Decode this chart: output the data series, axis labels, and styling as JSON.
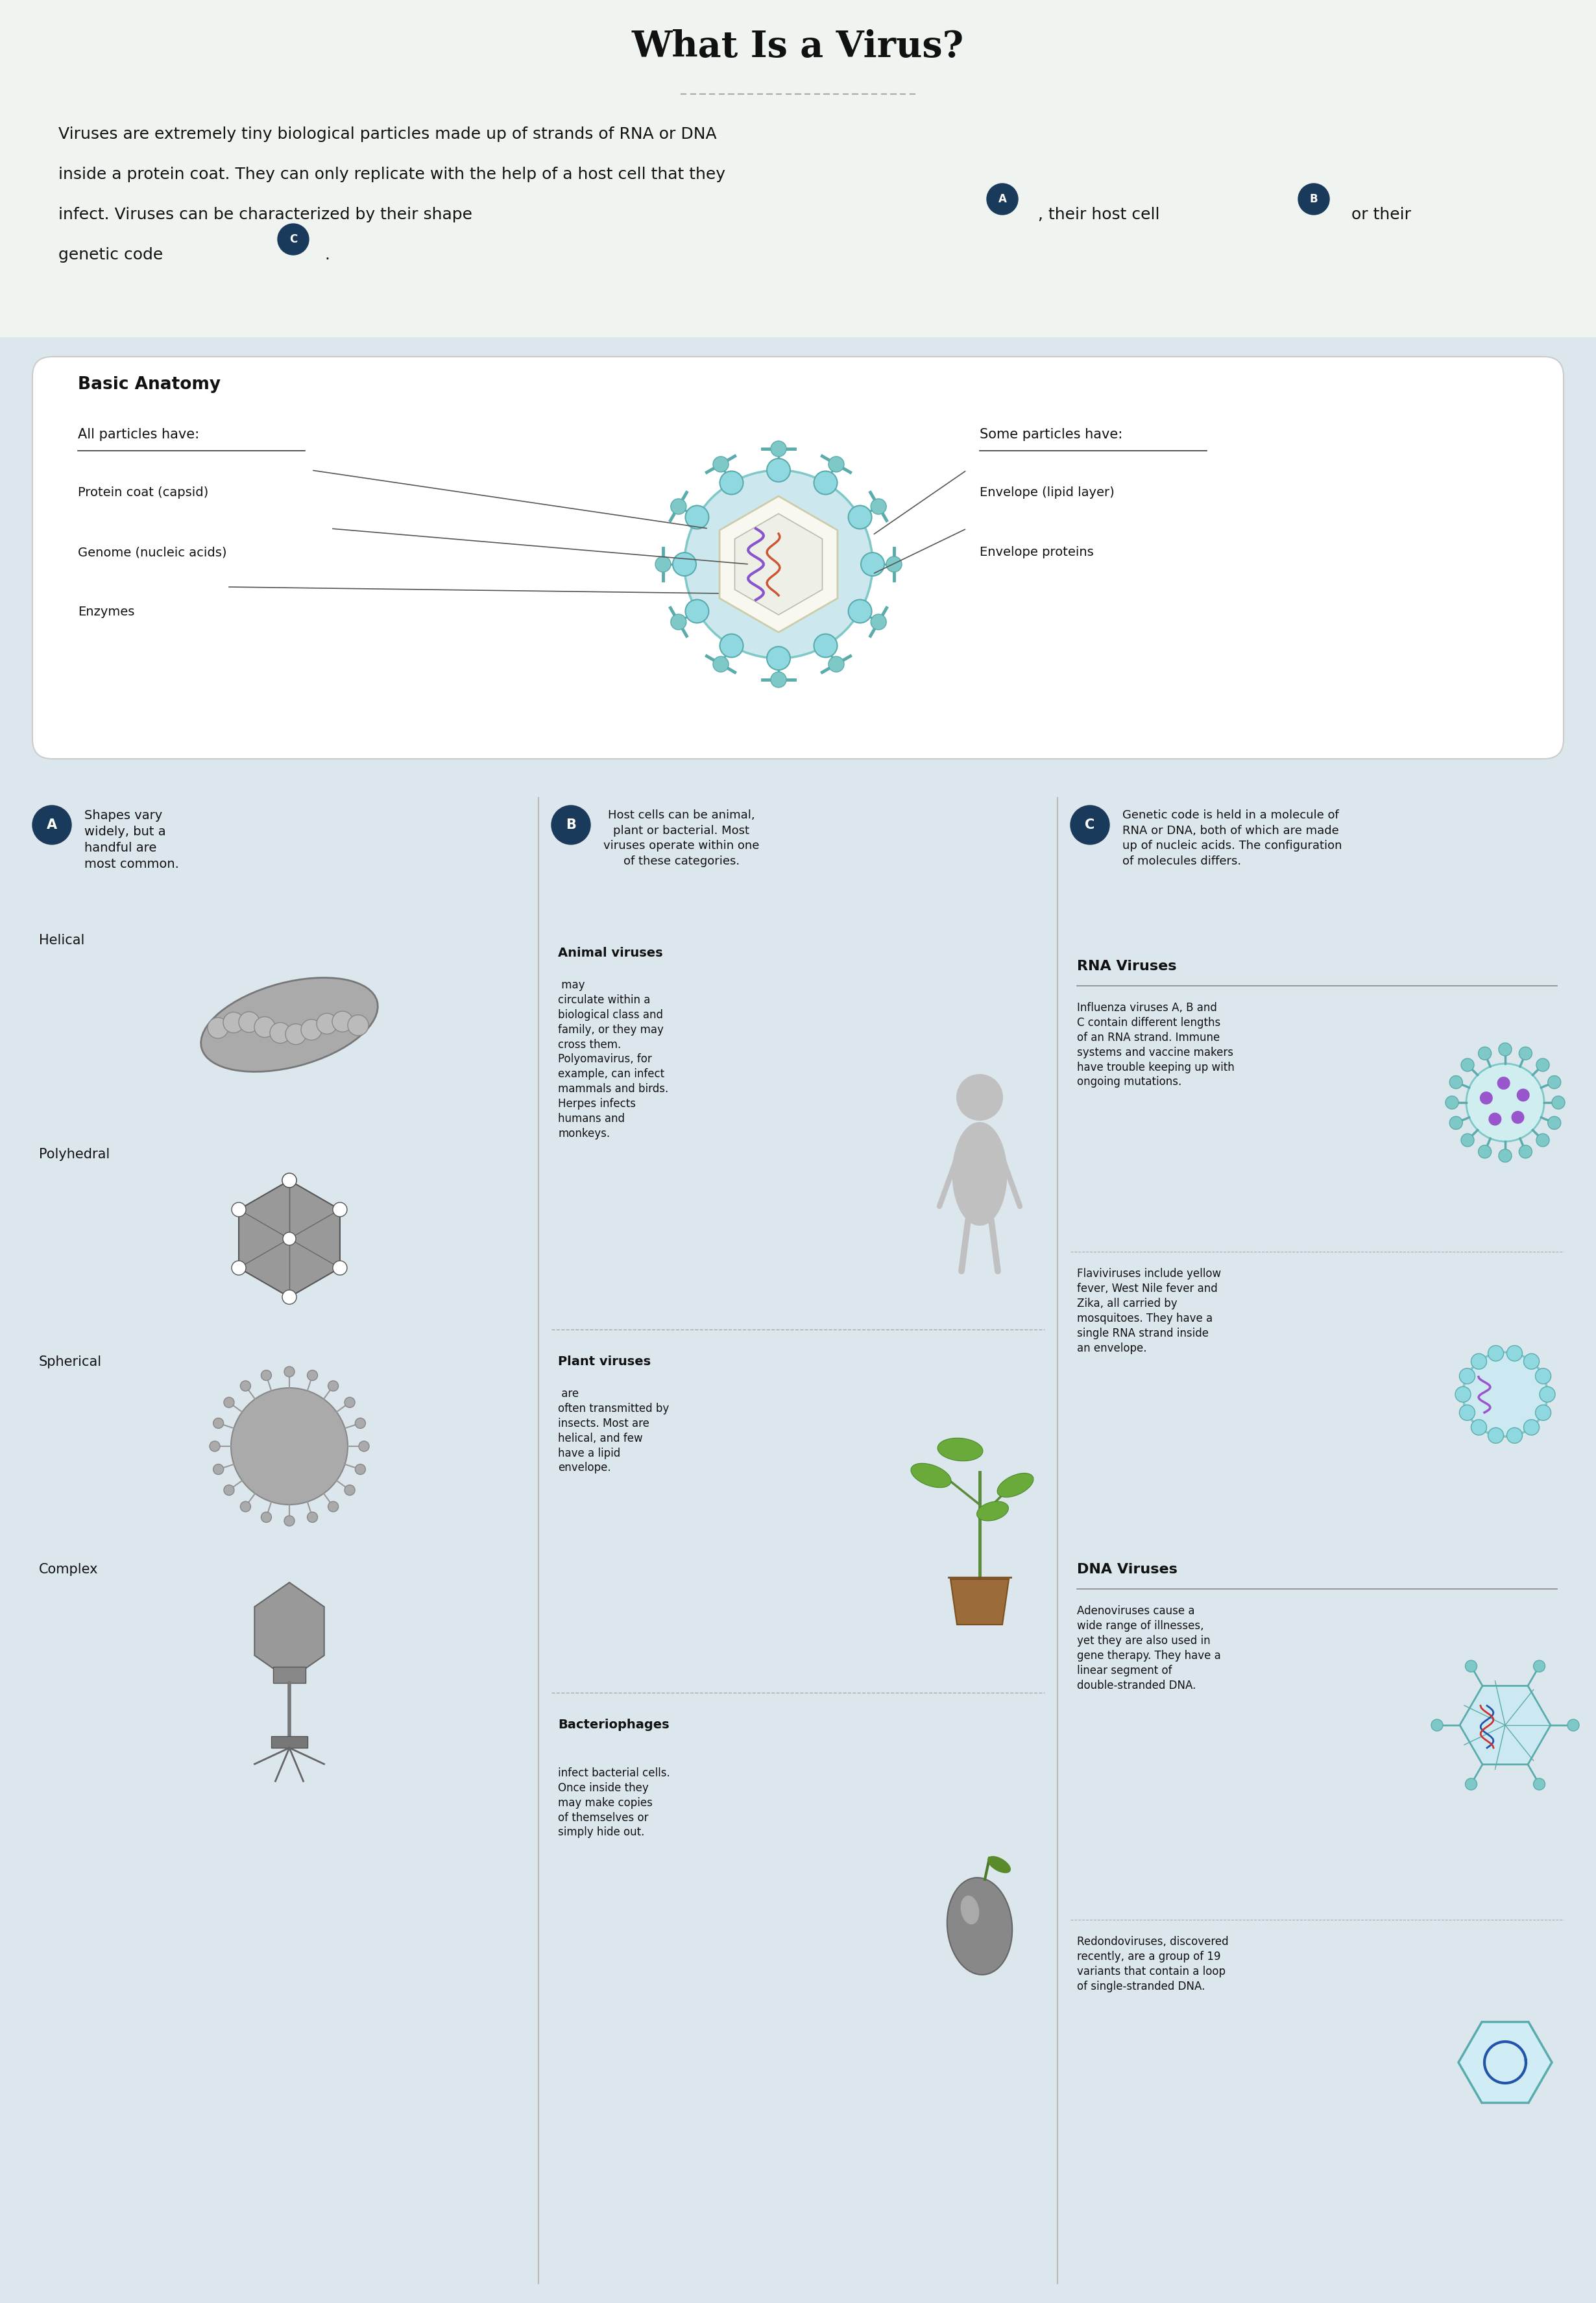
{
  "title": "What Is a Virus?",
  "bg_color": "#dce6ed",
  "white_bg": "#f0f4f0",
  "anatomy_box_color": "#f5f5f0",
  "intro_text_line1": "Viruses are extremely tiny biological particles made up of strands of RNA or DNA",
  "intro_text_line2": "inside a protein coat. They can only replicate with the help of a host cell that they",
  "intro_text_line3": "infect. Viruses can be characterized by their shape",
  "intro_text_line4": ", their host cell",
  "intro_text_line5": " or their",
  "intro_text_line6": "genetic code",
  "intro_text_line7": ".",
  "section_a_title": "Shapes vary\nwidely, but a\nhandful are\nmost common.",
  "section_b_title": "Host cells can be animal,\nplant or bacterial. Most\nviruses operate within one\nof these categories.",
  "section_c_title": "Genetic code is held in a molecule of\nRNA or DNA, both of which are made\nup of nucleic acids. The configuration\nof molecules differs.",
  "shapes": [
    "Helical",
    "Polyhedral",
    "Spherical",
    "Complex"
  ],
  "animal_bold": "Animal viruses",
  "animal_text": " may\ncirculate within a\nbiological class and\nfamily, or they may\ncross them.\nPolyomavirus, for\nexample, can infect\nmammals and birds.\nHerpes infects\nhumans and\nmonkeys.",
  "plant_bold": "Plant viruses",
  "plant_text": " are\noften transmitted by\ninsects. Most are\nhelical, and few\nhave a lipid\nenvelope.",
  "bacterio_bold": "Bacteriophages",
  "bacterio_text": "\ninfect bacterial cells.\nOnce inside they\nmay make copies\nof themselves or\nsimply hide out.",
  "rna_header": "RNA Viruses",
  "dna_header": "DNA Viruses",
  "rna_text1": "Influenza viruses A, B and\nC contain different lengths\nof an RNA strand. Immune\nsystems and vaccine makers\nhave trouble keeping up with\nongoing mutations.",
  "rna_text2": "Flaviviruses include yellow\nfever, West Nile fever and\nZika, all carried by\nmosquitoes. They have a\nsingle RNA strand inside\nan envelope.",
  "dna_text1": "Adenoviruses cause a\nwide range of illnesses,\nyet they are also used in\ngene therapy. They have a\nlinear segment of\ndouble-stranded DNA.",
  "dna_text2": "Redondoviruses, discovered\nrecently, are a group of 19\nvariants that contain a loop\nof single-stranded DNA.",
  "anatomy_title": "Basic Anatomy",
  "anatomy_left1": "All particles have:",
  "anatomy_left2": "Protein coat (capsid)",
  "anatomy_left3": "Genome (nucleic acids)",
  "anatomy_left4": "Enzymes",
  "anatomy_right1": "Some particles have:",
  "anatomy_right2": "Envelope (lipid layer)",
  "anatomy_right3": "Envelope proteins",
  "color_teal": "#7ec8c8",
  "color_dark_teal": "#5aacac",
  "color_badge": "#1a3a5c"
}
